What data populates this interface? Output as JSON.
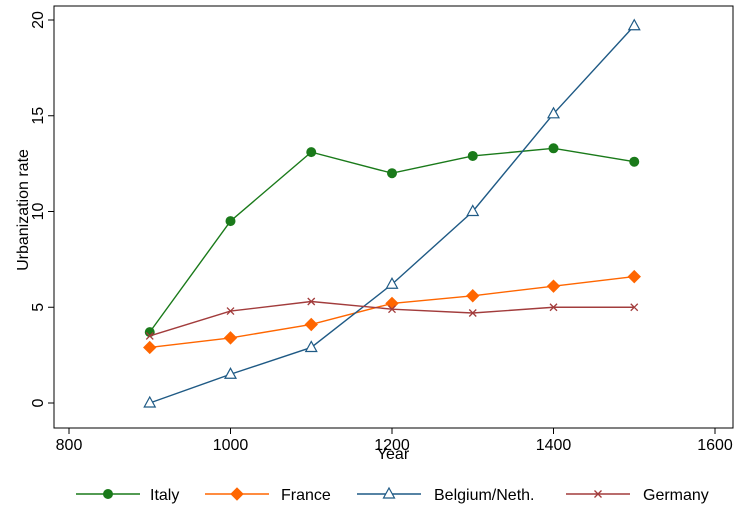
{
  "chart_data": {
    "type": "line",
    "title": "",
    "xlabel": "Year",
    "ylabel": "Urbanization rate",
    "xlim": [
      800,
      1600
    ],
    "ylim": [
      0,
      20
    ],
    "xticks": [
      "800",
      "1000",
      "1200",
      "1400",
      "1600"
    ],
    "yticks": [
      "0",
      "5",
      "10",
      "15",
      "20"
    ],
    "grid": false,
    "legend_position": "bottom",
    "x": [
      900,
      1000,
      1100,
      1200,
      1300,
      1400,
      1500
    ],
    "series": [
      {
        "name": "Italy",
        "color": "#1a7a1a",
        "marker": "circle",
        "values": [
          3.7,
          9.5,
          13.1,
          12.0,
          12.9,
          13.3,
          12.6
        ]
      },
      {
        "name": "France",
        "color": "#ff6600",
        "marker": "diamond",
        "values": [
          2.9,
          3.4,
          4.1,
          5.2,
          5.6,
          6.1,
          6.6
        ]
      },
      {
        "name": "Belgium/Neth.",
        "color": "#1f5a85",
        "marker": "triangle",
        "values": [
          0.0,
          1.5,
          2.9,
          6.2,
          10.0,
          15.1,
          19.7
        ]
      },
      {
        "name": "Germany",
        "color": "#a23c3c",
        "marker": "x",
        "values": [
          3.5,
          4.8,
          5.3,
          4.9,
          4.7,
          5.0,
          5.0
        ]
      }
    ]
  }
}
